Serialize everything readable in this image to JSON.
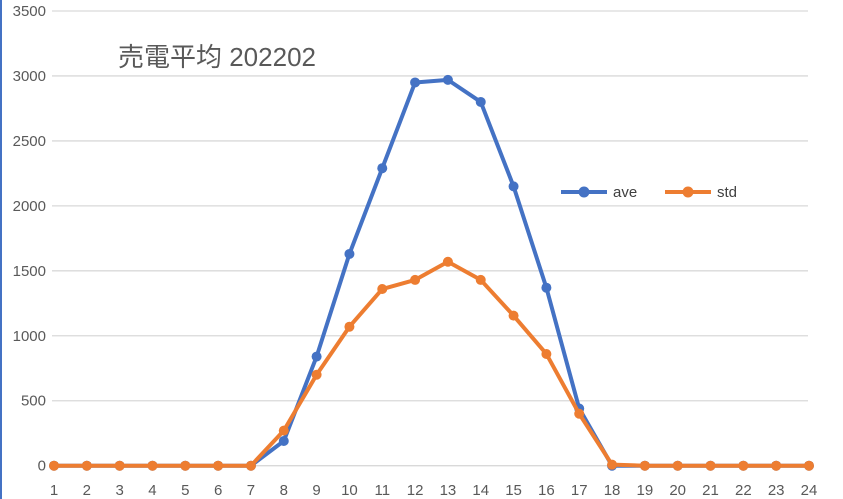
{
  "chart_data": {
    "type": "line",
    "title": "売電平均 202202",
    "xlabel": "",
    "ylabel": "",
    "categories": [
      "1",
      "2",
      "3",
      "4",
      "5",
      "6",
      "7",
      "8",
      "9",
      "10",
      "11",
      "12",
      "13",
      "14",
      "15",
      "16",
      "17",
      "18",
      "19",
      "20",
      "21",
      "22",
      "23",
      "24"
    ],
    "ylim": [
      0,
      3500
    ],
    "yticks": [
      "0",
      "500",
      "1000",
      "1500",
      "2000",
      "2500",
      "3000",
      "3500"
    ],
    "grid": true,
    "legend_position": "right",
    "series": [
      {
        "name": "ave",
        "color": "#4472C4",
        "values": [
          0,
          0,
          0,
          0,
          0,
          0,
          0,
          190,
          840,
          1630,
          2290,
          2950,
          2970,
          2800,
          2150,
          1370,
          440,
          0,
          0,
          0,
          0,
          0,
          0,
          0
        ]
      },
      {
        "name": "std",
        "color": "#ED7D31",
        "values": [
          0,
          0,
          0,
          0,
          0,
          0,
          0,
          270,
          700,
          1070,
          1360,
          1430,
          1570,
          1430,
          1155,
          860,
          400,
          8,
          0,
          0,
          0,
          0,
          0,
          0
        ]
      }
    ]
  }
}
